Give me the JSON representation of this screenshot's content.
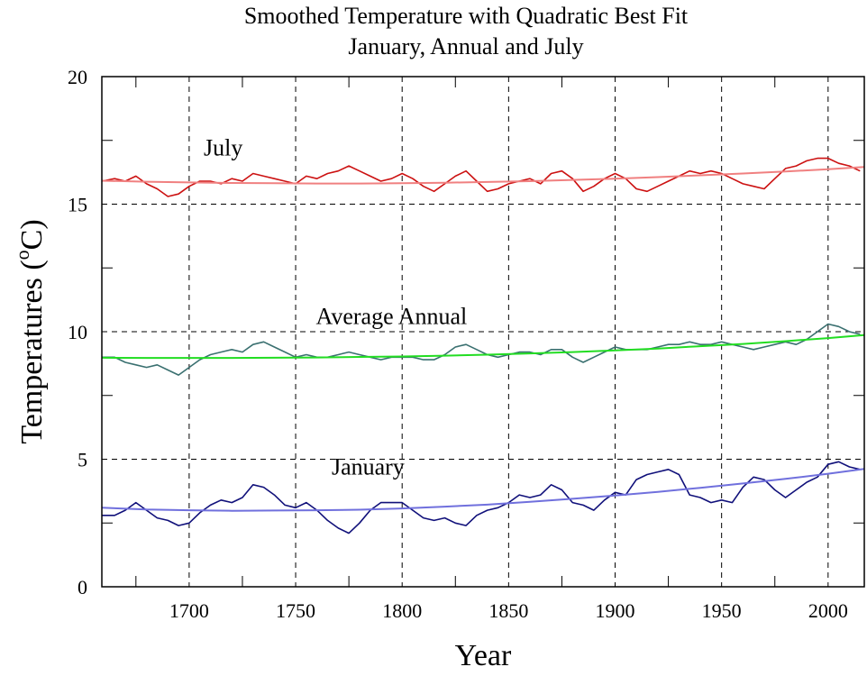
{
  "chart_data": {
    "type": "line",
    "title": "Smoothed Temperature with Quadratic Best Fit",
    "subtitle": "January, Annual and July",
    "xlabel": "Year",
    "ylabel_main": "Temperatures (",
    "ylabel_sup": "o",
    "ylabel_end": "C)",
    "xlim": [
      1659,
      2017
    ],
    "ylim": [
      0,
      20
    ],
    "x_ticks": [
      1700,
      1750,
      1800,
      1850,
      1900,
      1950,
      2000
    ],
    "x_tick_labels": [
      "1700",
      "1750",
      "1800",
      "1850",
      "1900",
      "1950",
      "2000"
    ],
    "y_ticks": [
      0,
      5,
      10,
      15,
      20
    ],
    "y_tick_labels": [
      "0",
      "5",
      "10",
      "15",
      "20"
    ],
    "grid": "dashed",
    "annotations": [
      {
        "text": "July",
        "x": 1716,
        "y": 16.9
      },
      {
        "text": "Average Annual",
        "x": 1795,
        "y": 10.3
      },
      {
        "text": "January",
        "x": 1784,
        "y": 4.4
      }
    ],
    "series": [
      {
        "name": "July",
        "color": "#cc1111",
        "x": [
          1659,
          1665,
          1670,
          1675,
          1680,
          1685,
          1690,
          1695,
          1700,
          1705,
          1710,
          1715,
          1720,
          1725,
          1730,
          1735,
          1740,
          1745,
          1750,
          1755,
          1760,
          1765,
          1770,
          1775,
          1780,
          1785,
          1790,
          1795,
          1800,
          1805,
          1810,
          1815,
          1820,
          1825,
          1830,
          1835,
          1840,
          1845,
          1850,
          1855,
          1860,
          1865,
          1870,
          1875,
          1880,
          1885,
          1890,
          1895,
          1900,
          1905,
          1910,
          1915,
          1920,
          1925,
          1930,
          1935,
          1940,
          1945,
          1950,
          1955,
          1960,
          1965,
          1970,
          1975,
          1980,
          1985,
          1990,
          1995,
          2000,
          2005,
          2010,
          2015
        ],
        "values": [
          15.9,
          16.0,
          15.9,
          16.1,
          15.8,
          15.6,
          15.3,
          15.4,
          15.7,
          15.9,
          15.9,
          15.8,
          16.0,
          15.9,
          16.2,
          16.1,
          16.0,
          15.9,
          15.8,
          16.1,
          16.0,
          16.2,
          16.3,
          16.5,
          16.3,
          16.1,
          15.9,
          16.0,
          16.2,
          16.0,
          15.7,
          15.5,
          15.8,
          16.1,
          16.3,
          15.9,
          15.5,
          15.6,
          15.8,
          15.9,
          16.0,
          15.8,
          16.2,
          16.3,
          16.0,
          15.5,
          15.7,
          16.0,
          16.2,
          16.0,
          15.6,
          15.5,
          15.7,
          15.9,
          16.1,
          16.3,
          16.2,
          16.3,
          16.2,
          16.0,
          15.8,
          15.7,
          15.6,
          16.0,
          16.4,
          16.5,
          16.7,
          16.8,
          16.8,
          16.6,
          16.5,
          16.3
        ]
      },
      {
        "name": "July fit",
        "color": "#f08080",
        "x": [
          1659,
          1680,
          1700,
          1720,
          1740,
          1760,
          1780,
          1800,
          1820,
          1840,
          1860,
          1880,
          1900,
          1920,
          1940,
          1960,
          1980,
          2000,
          2017
        ],
        "values": [
          15.92,
          15.88,
          15.85,
          15.83,
          15.82,
          15.81,
          15.81,
          15.82,
          15.84,
          15.87,
          15.9,
          15.95,
          16.0,
          16.06,
          16.13,
          16.2,
          16.28,
          16.37,
          16.46
        ]
      },
      {
        "name": "Average Annual",
        "color": "#3a7070",
        "x": [
          1659,
          1665,
          1670,
          1675,
          1680,
          1685,
          1690,
          1695,
          1700,
          1705,
          1710,
          1715,
          1720,
          1725,
          1730,
          1735,
          1740,
          1745,
          1750,
          1755,
          1760,
          1765,
          1770,
          1775,
          1780,
          1785,
          1790,
          1795,
          1800,
          1805,
          1810,
          1815,
          1820,
          1825,
          1830,
          1835,
          1840,
          1845,
          1850,
          1855,
          1860,
          1865,
          1870,
          1875,
          1880,
          1885,
          1890,
          1895,
          1900,
          1905,
          1910,
          1915,
          1920,
          1925,
          1930,
          1935,
          1940,
          1945,
          1950,
          1955,
          1960,
          1965,
          1970,
          1975,
          1980,
          1985,
          1990,
          1995,
          2000,
          2005,
          2010,
          2015
        ],
        "values": [
          9.0,
          9.0,
          8.8,
          8.7,
          8.6,
          8.7,
          8.5,
          8.3,
          8.6,
          8.9,
          9.1,
          9.2,
          9.3,
          9.2,
          9.5,
          9.6,
          9.4,
          9.2,
          9.0,
          9.1,
          9.0,
          9.0,
          9.1,
          9.2,
          9.1,
          9.0,
          8.9,
          9.0,
          9.0,
          9.0,
          8.9,
          8.9,
          9.1,
          9.4,
          9.5,
          9.3,
          9.1,
          9.0,
          9.1,
          9.2,
          9.2,
          9.1,
          9.3,
          9.3,
          9.0,
          8.8,
          9.0,
          9.2,
          9.4,
          9.3,
          9.3,
          9.3,
          9.4,
          9.5,
          9.5,
          9.6,
          9.5,
          9.5,
          9.6,
          9.5,
          9.4,
          9.3,
          9.4,
          9.5,
          9.6,
          9.5,
          9.7,
          10.0,
          10.3,
          10.2,
          10.0,
          9.9
        ]
      },
      {
        "name": "Average Annual fit",
        "color": "#22dd22",
        "x": [
          1659,
          1680,
          1700,
          1720,
          1740,
          1760,
          1780,
          1800,
          1820,
          1840,
          1860,
          1880,
          1900,
          1920,
          1940,
          1960,
          1980,
          2000,
          2017
        ],
        "values": [
          8.98,
          8.97,
          8.97,
          8.97,
          8.98,
          8.99,
          9.01,
          9.03,
          9.06,
          9.1,
          9.15,
          9.2,
          9.27,
          9.34,
          9.43,
          9.52,
          9.63,
          9.75,
          9.87
        ]
      },
      {
        "name": "January",
        "color": "#10107a",
        "x": [
          1659,
          1665,
          1670,
          1675,
          1680,
          1685,
          1690,
          1695,
          1700,
          1705,
          1710,
          1715,
          1720,
          1725,
          1730,
          1735,
          1740,
          1745,
          1750,
          1755,
          1760,
          1765,
          1770,
          1775,
          1780,
          1785,
          1790,
          1795,
          1800,
          1805,
          1810,
          1815,
          1820,
          1825,
          1830,
          1835,
          1840,
          1845,
          1850,
          1855,
          1860,
          1865,
          1870,
          1875,
          1880,
          1885,
          1890,
          1895,
          1900,
          1905,
          1910,
          1915,
          1920,
          1925,
          1930,
          1935,
          1940,
          1945,
          1950,
          1955,
          1960,
          1965,
          1970,
          1975,
          1980,
          1985,
          1990,
          1995,
          2000,
          2005,
          2010,
          2015
        ],
        "values": [
          2.8,
          2.8,
          3.0,
          3.3,
          3.0,
          2.7,
          2.6,
          2.4,
          2.5,
          2.9,
          3.2,
          3.4,
          3.3,
          3.5,
          4.0,
          3.9,
          3.6,
          3.2,
          3.1,
          3.3,
          3.0,
          2.6,
          2.3,
          2.1,
          2.5,
          3.0,
          3.3,
          3.3,
          3.3,
          3.0,
          2.7,
          2.6,
          2.7,
          2.5,
          2.4,
          2.8,
          3.0,
          3.1,
          3.3,
          3.6,
          3.5,
          3.6,
          4.0,
          3.8,
          3.3,
          3.2,
          3.0,
          3.4,
          3.7,
          3.6,
          4.2,
          4.4,
          4.5,
          4.6,
          4.4,
          3.6,
          3.5,
          3.3,
          3.4,
          3.3,
          3.9,
          4.3,
          4.2,
          3.8,
          3.5,
          3.8,
          4.1,
          4.3,
          4.8,
          4.9,
          4.7,
          4.6
        ]
      },
      {
        "name": "January fit",
        "color": "#7070dd",
        "x": [
          1659,
          1680,
          1700,
          1720,
          1740,
          1760,
          1780,
          1800,
          1820,
          1840,
          1860,
          1880,
          1900,
          1920,
          1940,
          1960,
          1980,
          2000,
          2017
        ],
        "values": [
          3.1,
          3.03,
          3.0,
          2.98,
          2.99,
          3.0,
          3.02,
          3.07,
          3.14,
          3.22,
          3.33,
          3.45,
          3.58,
          3.72,
          3.88,
          4.05,
          4.23,
          4.43,
          4.62
        ]
      }
    ]
  }
}
